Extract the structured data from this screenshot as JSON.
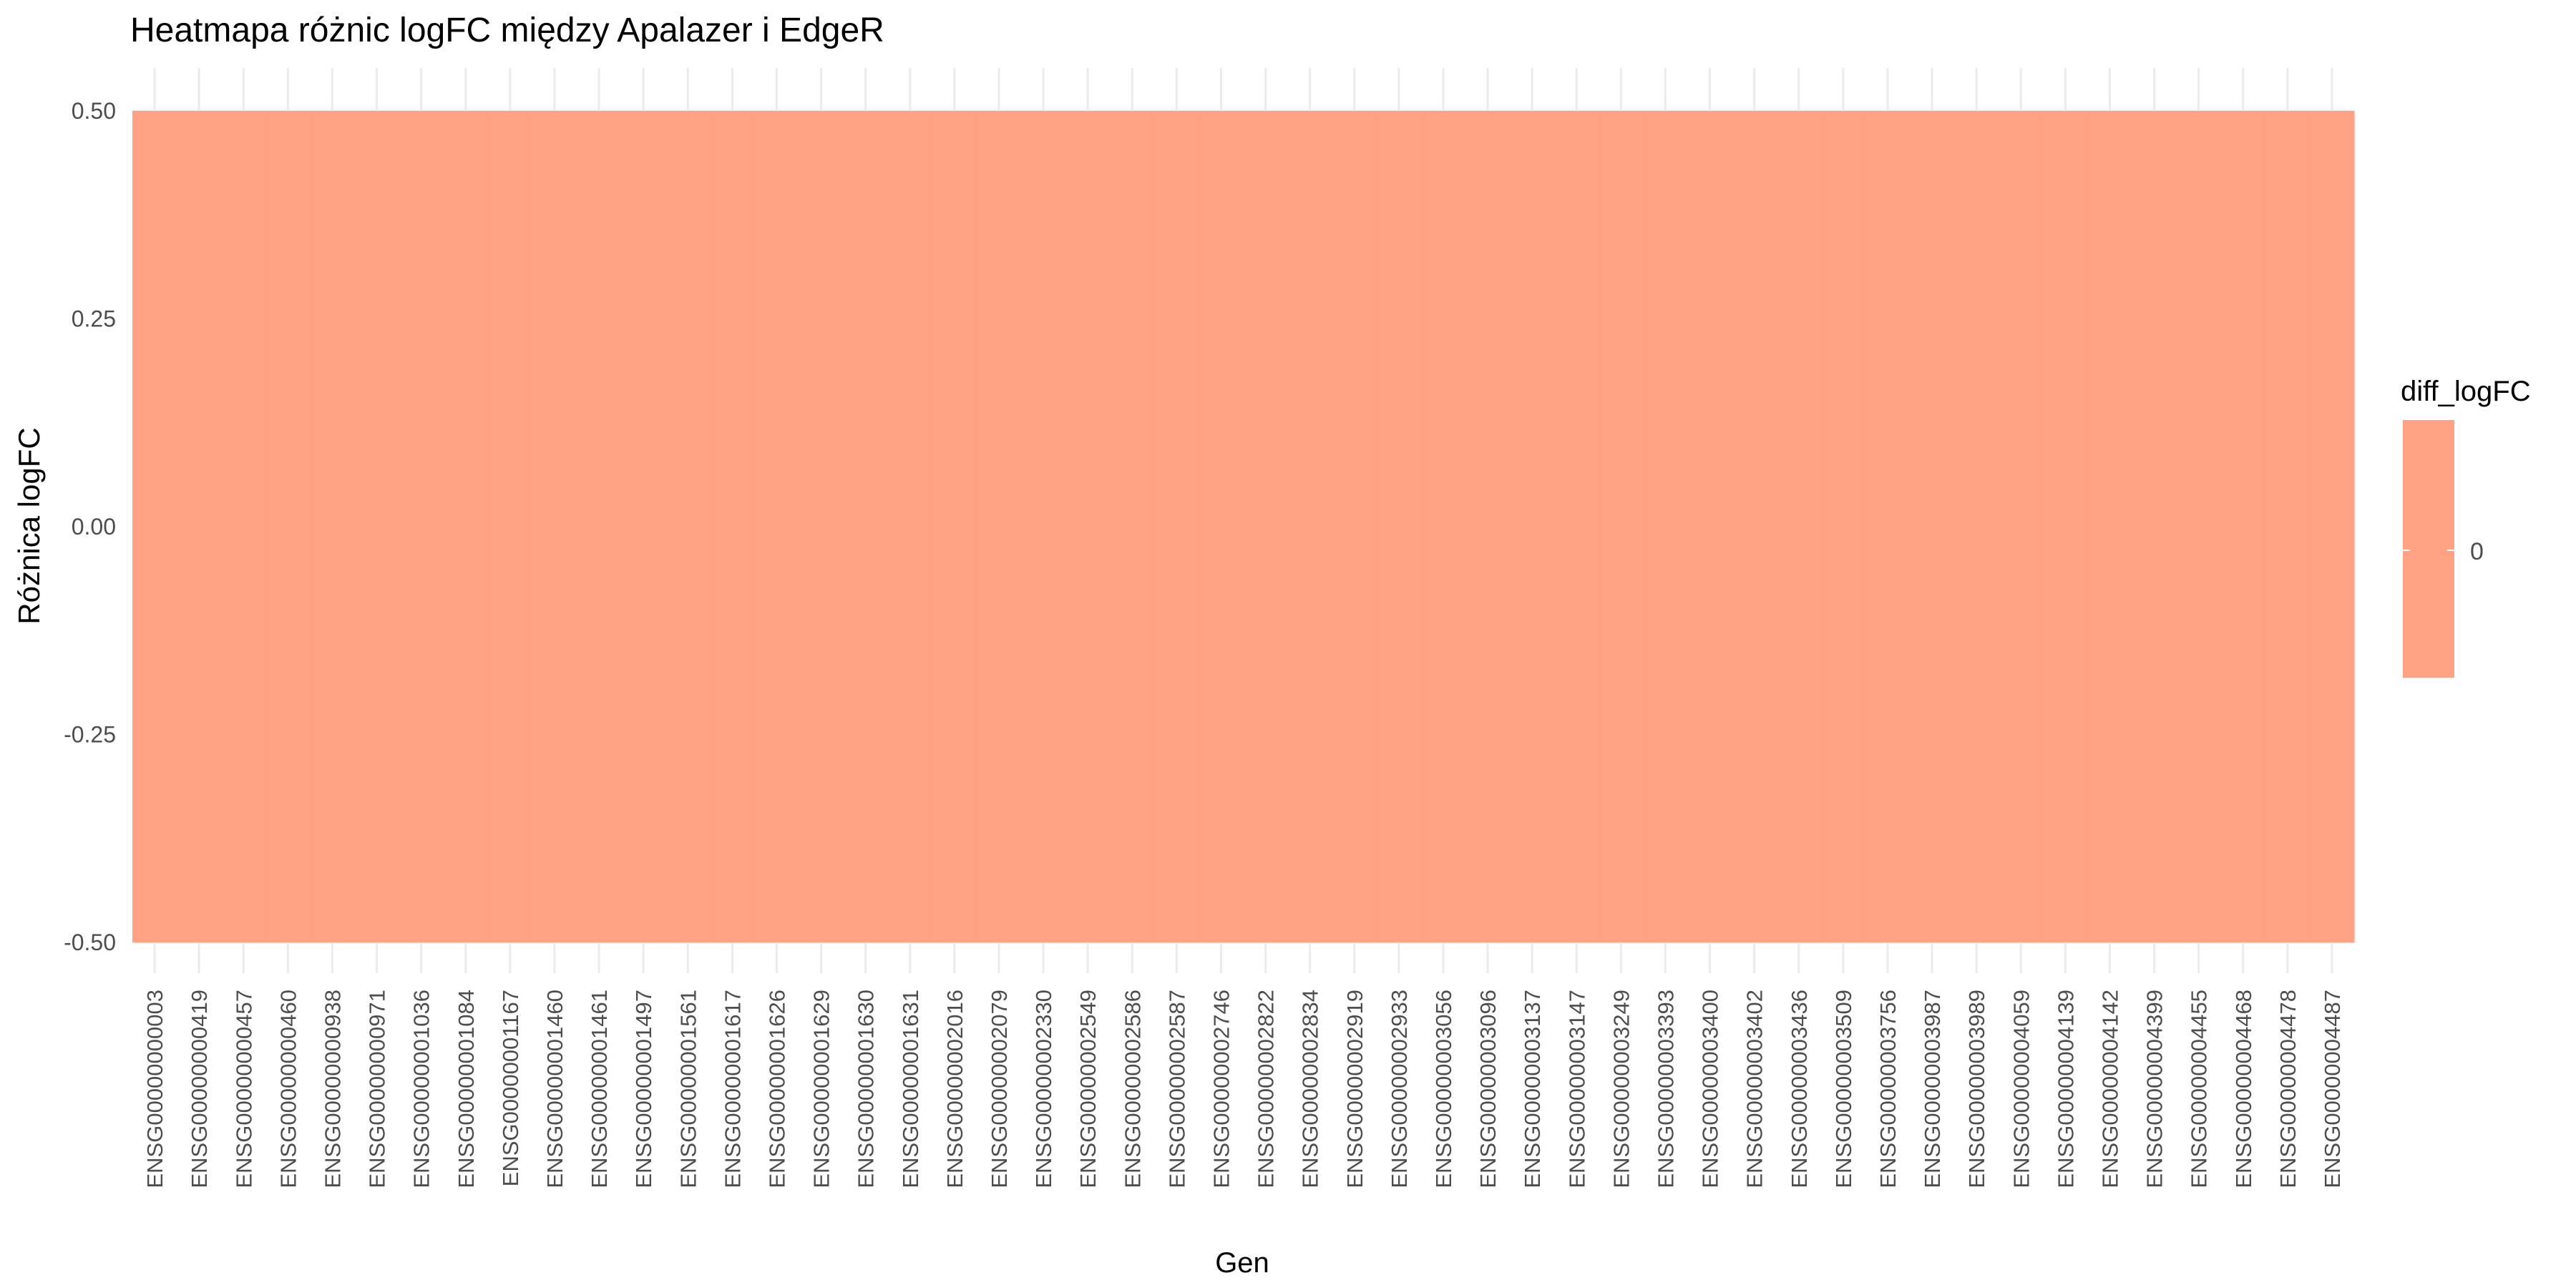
{
  "chart_data": {
    "type": "heatmap",
    "title": "Heatmapa różnic logFC między Apalazer i EdgeR",
    "xlabel": "Gen",
    "ylabel": "Różnica logFC",
    "x": [
      "ENSG00000000003",
      "ENSG00000000419",
      "ENSG00000000457",
      "ENSG00000000460",
      "ENSG00000000938",
      "ENSG00000000971",
      "ENSG00000001036",
      "ENSG00000001084",
      "ENSG00000001167",
      "ENSG00000001460",
      "ENSG00000001461",
      "ENSG00000001497",
      "ENSG00000001561",
      "ENSG00000001617",
      "ENSG00000001626",
      "ENSG00000001629",
      "ENSG00000001630",
      "ENSG00000001631",
      "ENSG00000002016",
      "ENSG00000002079",
      "ENSG00000002330",
      "ENSG00000002549",
      "ENSG00000002586",
      "ENSG00000002587",
      "ENSG00000002746",
      "ENSG00000002822",
      "ENSG00000002834",
      "ENSG00000002919",
      "ENSG00000002933",
      "ENSG00000003056",
      "ENSG00000003096",
      "ENSG00000003137",
      "ENSG00000003147",
      "ENSG00000003249",
      "ENSG00000003393",
      "ENSG00000003400",
      "ENSG00000003402",
      "ENSG00000003436",
      "ENSG00000003509",
      "ENSG00000003756",
      "ENSG00000003987",
      "ENSG00000003989",
      "ENSG00000004059",
      "ENSG00000004139",
      "ENSG00000004142",
      "ENSG00000004399",
      "ENSG00000004455",
      "ENSG00000004468",
      "ENSG00000004478",
      "ENSG00000004487"
    ],
    "y_ticks": [
      "0.50",
      "0.25",
      "0.00",
      "-0.25",
      "-0.50"
    ],
    "ylim": [
      -0.5,
      0.5
    ],
    "values": [
      0,
      0,
      0,
      0,
      0,
      0,
      0,
      0,
      0,
      0,
      0,
      0,
      0,
      0,
      0,
      0,
      0,
      0,
      0,
      0,
      0,
      0,
      0,
      0,
      0,
      0,
      0,
      0,
      0,
      0,
      0,
      0,
      0,
      0,
      0,
      0,
      0,
      0,
      0,
      0,
      0,
      0,
      0,
      0,
      0,
      0,
      0,
      0,
      0,
      0
    ],
    "tile_color": "#FFA183",
    "grid": true,
    "grid_color": "#ebebeb",
    "legend": {
      "title": "diff_logFC",
      "label": "0",
      "color": "#FFA183",
      "placement": "right"
    }
  }
}
